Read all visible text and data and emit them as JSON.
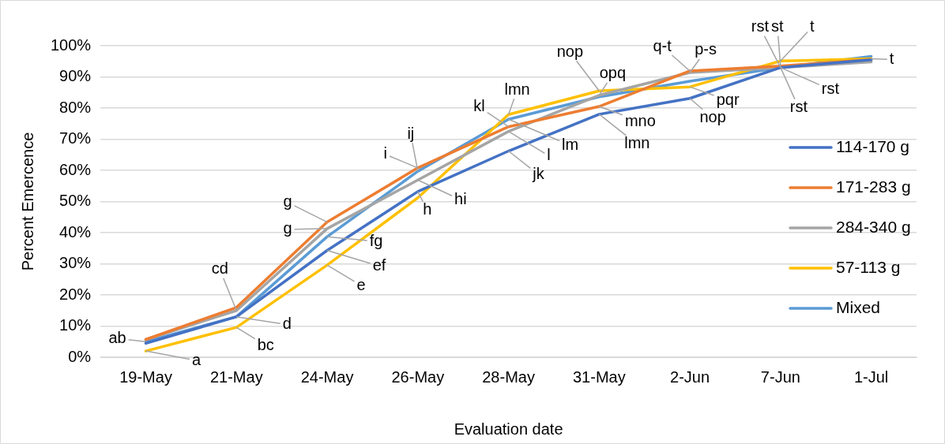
{
  "chart_data": {
    "type": "line",
    "xlabel": "Evaluation date",
    "ylabel": "Percent Emercence",
    "categories": [
      "19-May",
      "21-May",
      "24-May",
      "26-May",
      "28-May",
      "31-May",
      "2-Jun",
      "7-Jun",
      "1-Jul"
    ],
    "series": [
      {
        "name": "114-170 g",
        "color": "#4472c4",
        "values": [
          4.5,
          13,
          34.3,
          53.2,
          66.2,
          78,
          83.1,
          93,
          95.5
        ]
      },
      {
        "name": "171-283 g",
        "color": "#ed7d31",
        "values": [
          5.7,
          16,
          43.4,
          60.8,
          74,
          80.5,
          91.9,
          93.5,
          95.6
        ]
      },
      {
        "name": "284-340 g",
        "color": "#a5a5a5",
        "values": [
          5.7,
          15,
          41.3,
          56.9,
          72.5,
          84.1,
          91.4,
          93,
          94.8
        ]
      },
      {
        "name": "57-113 g",
        "color": "#ffc000",
        "values": [
          2,
          9.6,
          29.6,
          51.2,
          77.9,
          85.5,
          86.8,
          95.1,
          95.8
        ]
      },
      {
        "name": "Mixed",
        "color": "#5b9bd5",
        "values": [
          5,
          13,
          38.7,
          59.7,
          76.4,
          83.6,
          88.6,
          93,
          96.6
        ]
      }
    ],
    "ylim": [
      0,
      100
    ],
    "yticks": [
      {
        "value": 0,
        "label": "0%"
      },
      {
        "value": 10,
        "label": "10%"
      },
      {
        "value": 20,
        "label": "20%"
      },
      {
        "value": 30,
        "label": "30%"
      },
      {
        "value": 40,
        "label": "40%"
      },
      {
        "value": 50,
        "label": "50%"
      },
      {
        "value": 60,
        "label": "60%"
      },
      {
        "value": 70,
        "label": "70%"
      },
      {
        "value": 80,
        "label": "80%"
      },
      {
        "value": 90,
        "label": "90%"
      },
      {
        "value": 100,
        "label": "100%"
      }
    ],
    "grid": "y",
    "legend": "right",
    "marker": "none",
    "line_style": "solid",
    "annotations": [
      {
        "text": "ab",
        "x": "19-May",
        "y": 5
      },
      {
        "text": "a",
        "x": "19-May",
        "y": 2
      },
      {
        "text": "cd",
        "x": "21-May",
        "y": 15
      },
      {
        "text": "d",
        "x": "21-May",
        "y": 13
      },
      {
        "text": "bc",
        "x": "21-May",
        "y": 9.6
      },
      {
        "text": "g",
        "x": "24-May",
        "y": 43.4
      },
      {
        "text": "g",
        "x": "24-May",
        "y": 41.3
      },
      {
        "text": "fg",
        "x": "24-May",
        "y": 38.7
      },
      {
        "text": "ef",
        "x": "24-May",
        "y": 34.3
      },
      {
        "text": "e",
        "x": "24-May",
        "y": 29.6
      },
      {
        "text": "i",
        "x": "26-May",
        "y": 60.8
      },
      {
        "text": "ij",
        "x": "26-May",
        "y": 59.7
      },
      {
        "text": "hi",
        "x": "26-May",
        "y": 56.9
      },
      {
        "text": "h",
        "x": "26-May",
        "y": 53.2
      },
      {
        "text": "kl",
        "x": "28-May",
        "y": 74
      },
      {
        "text": "lmn",
        "x": "28-May",
        "y": 77.9
      },
      {
        "text": "lm",
        "x": "28-May",
        "y": 76.4
      },
      {
        "text": "l",
        "x": "28-May",
        "y": 72.5
      },
      {
        "text": "jk",
        "x": "28-May",
        "y": 66.2
      },
      {
        "text": "nop",
        "x": "31-May",
        "y": 85.5
      },
      {
        "text": "opq",
        "x": "31-May",
        "y": 84.1
      },
      {
        "text": "mno",
        "x": "31-May",
        "y": 80.5
      },
      {
        "text": "lmn",
        "x": "31-May",
        "y": 78
      },
      {
        "text": "q-t",
        "x": "2-Jun",
        "y": 91.9
      },
      {
        "text": "p-s",
        "x": "2-Jun",
        "y": 91.4
      },
      {
        "text": "pqr",
        "x": "2-Jun",
        "y": 86.8
      },
      {
        "text": "nop",
        "x": "2-Jun",
        "y": 83.1
      },
      {
        "text": "rst",
        "x": "7-Jun",
        "y": 93
      },
      {
        "text": "st",
        "x": "7-Jun",
        "y": 93.5
      },
      {
        "text": "t",
        "x": "7-Jun",
        "y": 95.1
      },
      {
        "text": "rst",
        "x": "7-Jun",
        "y": 93
      },
      {
        "text": "rst",
        "x": "7-Jun",
        "y": 93
      },
      {
        "text": "t",
        "x": "1-Jul",
        "y": 95.8
      }
    ]
  }
}
